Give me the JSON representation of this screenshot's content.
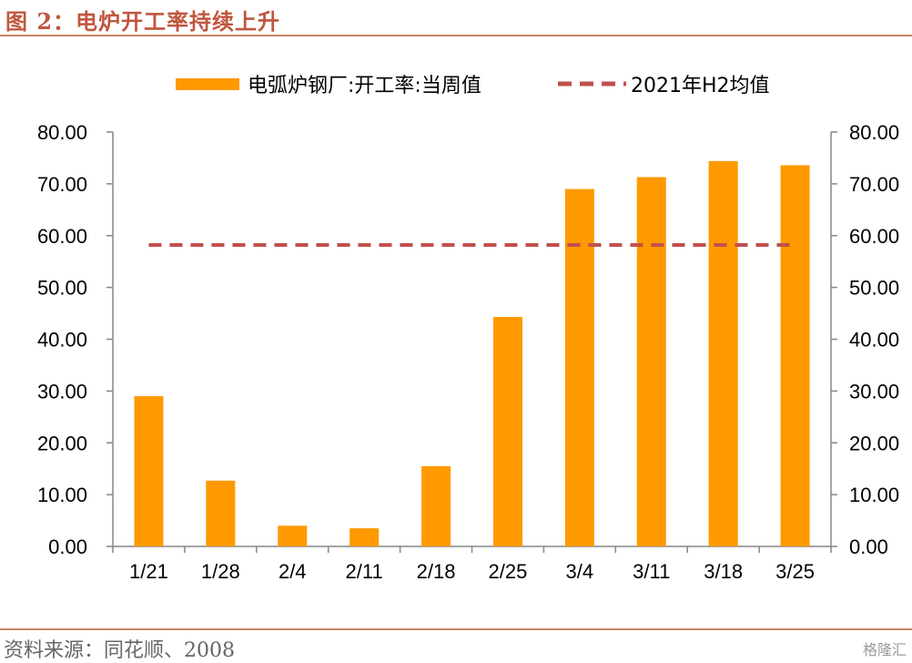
{
  "header": {
    "title": "图 2：电炉开工率持续上升"
  },
  "footer": {
    "source": "资料来源：同花顺、2008",
    "watermark": "格隆汇"
  },
  "colors": {
    "bar": "#ff9900",
    "reference_line": "#c0504d",
    "title": "#c0563e",
    "rule": "#c8836a"
  },
  "chart_data": {
    "type": "bar",
    "categories": [
      "1/21",
      "1/28",
      "2/4",
      "2/11",
      "2/18",
      "2/25",
      "3/4",
      "3/11",
      "3/18",
      "3/25"
    ],
    "series": [
      {
        "name": "电弧炉钢厂:开工率:当周值",
        "type": "bar",
        "values": [
          29.0,
          12.7,
          4.0,
          3.5,
          15.5,
          44.3,
          69.0,
          71.3,
          74.4,
          73.6
        ]
      },
      {
        "name": "2021年H2均值",
        "type": "line-dashed",
        "value": 58.2
      }
    ],
    "yticks": [
      "0.00",
      "10.00",
      "20.00",
      "30.00",
      "40.00",
      "50.00",
      "60.00",
      "70.00",
      "80.00"
    ],
    "ylim": [
      0,
      80
    ],
    "secondary_axis": true,
    "grid": false,
    "legend": "top-center"
  }
}
